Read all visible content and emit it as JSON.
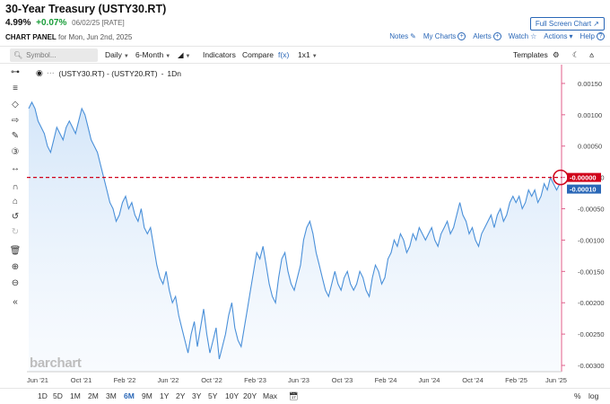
{
  "header": {
    "title": "30-Year Treasury (USTY30.RT)",
    "last": "4.99%",
    "change": "+0.07%",
    "meta": "06/02/25 [RATE]",
    "fullscreen_label": "Full Screen Chart",
    "panel_label": "CHART PANEL",
    "panel_date": "for Mon, Jun 2nd, 2025",
    "links": {
      "notes": "Notes",
      "mycharts": "My Charts",
      "alerts": "Alerts",
      "watch": "Watch",
      "actions": "Actions",
      "help": "Help"
    }
  },
  "toolbar": {
    "symbol_placeholder": "Symbol...",
    "interval": "Daily",
    "period": "6-Month",
    "indicators": "Indicators",
    "compare": "Compare",
    "fx": "f(x)",
    "layout": "1x1",
    "templates": "Templates"
  },
  "legend": {
    "expression": "(USTY30.RT) - (USTY20.RT)",
    "interval": "1Dn"
  },
  "watermark": "barchart",
  "colors": {
    "line": "#4a90d9",
    "fill_top": "#cfe3f8",
    "crosshair": "#d0021b",
    "accent": "#2a67b7",
    "change_up": "#1a9e3a"
  },
  "chart_data": {
    "type": "area",
    "x_range": [
      "Jun '21",
      "Jun '25"
    ],
    "x_ticks": [
      "Jun '21",
      "Oct '21",
      "Feb '22",
      "Jun '22",
      "Oct '22",
      "Feb '23",
      "Jun '23",
      "Oct '23",
      "Feb '24",
      "Jun '24",
      "Oct '24",
      "Feb '25",
      "Jun '25"
    ],
    "ylim": [
      -0.0031,
      0.0018
    ],
    "y_ticks": [
      "0.00150",
      "0.00100",
      "0.00050",
      "-0.00000",
      "-0.00050",
      "-0.00100",
      "-0.00150",
      "-0.00200",
      "-0.00250",
      "-0.00300"
    ],
    "y_tick_values": [
      0.0015,
      0.001,
      0.0005,
      0.0,
      -0.0005,
      -0.001,
      -0.0015,
      -0.002,
      -0.0025,
      -0.003
    ],
    "crosshair_value": 0.0,
    "crosshair_label": "-0.00000",
    "last_value": -0.0001,
    "last_label": "-0.00010",
    "series": [
      {
        "values": [
          0.0011,
          0.0012,
          0.0011,
          0.0009,
          0.0008,
          0.0007,
          0.0005,
          0.0004,
          0.0006,
          0.0008,
          0.0007,
          0.0006,
          0.0008,
          0.0009,
          0.0008,
          0.0007,
          0.0009,
          0.0011,
          0.001,
          0.0008,
          0.0006,
          0.0005,
          0.0004,
          0.0002,
          0.0,
          -0.0002,
          -0.0004,
          -0.0005,
          -0.0007,
          -0.0006,
          -0.0004,
          -0.0003,
          -0.0005,
          -0.0004,
          -0.0006,
          -0.0007,
          -0.0005,
          -0.0008,
          -0.0009,
          -0.0008,
          -0.0011,
          -0.0014,
          -0.0016,
          -0.0017,
          -0.0015,
          -0.0018,
          -0.002,
          -0.0019,
          -0.0022,
          -0.0024,
          -0.0026,
          -0.0028,
          -0.0025,
          -0.0023,
          -0.0027,
          -0.0024,
          -0.0021,
          -0.0025,
          -0.0028,
          -0.0026,
          -0.0024,
          -0.0029,
          -0.0027,
          -0.0025,
          -0.0022,
          -0.002,
          -0.0024,
          -0.0026,
          -0.0027,
          -0.0024,
          -0.0021,
          -0.0018,
          -0.0015,
          -0.0012,
          -0.0013,
          -0.0011,
          -0.0014,
          -0.0017,
          -0.0019,
          -0.002,
          -0.0016,
          -0.0013,
          -0.0012,
          -0.0015,
          -0.0017,
          -0.0018,
          -0.0016,
          -0.0014,
          -0.001,
          -0.0008,
          -0.0007,
          -0.0009,
          -0.0012,
          -0.0014,
          -0.0016,
          -0.0018,
          -0.0019,
          -0.0017,
          -0.0015,
          -0.0017,
          -0.0018,
          -0.0016,
          -0.0015,
          -0.0017,
          -0.0018,
          -0.0017,
          -0.0015,
          -0.0016,
          -0.0018,
          -0.0019,
          -0.0016,
          -0.0014,
          -0.0015,
          -0.0017,
          -0.0016,
          -0.0013,
          -0.0012,
          -0.001,
          -0.0011,
          -0.0009,
          -0.001,
          -0.0012,
          -0.0011,
          -0.0009,
          -0.001,
          -0.0008,
          -0.0009,
          -0.001,
          -0.0009,
          -0.0008,
          -0.001,
          -0.0011,
          -0.0009,
          -0.0008,
          -0.0007,
          -0.0009,
          -0.0008,
          -0.0006,
          -0.0004,
          -0.0006,
          -0.0007,
          -0.0009,
          -0.0008,
          -0.001,
          -0.0011,
          -0.0009,
          -0.0008,
          -0.0007,
          -0.0006,
          -0.0008,
          -0.0006,
          -0.0005,
          -0.0007,
          -0.0006,
          -0.0004,
          -0.0003,
          -0.0004,
          -0.0003,
          -0.0005,
          -0.0004,
          -0.0002,
          -0.0003,
          -0.0002,
          -0.0004,
          -0.0003,
          -0.0001,
          -0.0002,
          0.0,
          -0.0001,
          -0.0002,
          -0.0001
        ]
      }
    ]
  },
  "bottombar": {
    "ranges": [
      "1D",
      "5D",
      "1M",
      "2M",
      "3M",
      "6M",
      "9M",
      "1Y",
      "2Y",
      "3Y",
      "5Y",
      "10Y",
      "20Y",
      "Max"
    ],
    "active_range": "6M",
    "percent": "%",
    "log": "log"
  }
}
